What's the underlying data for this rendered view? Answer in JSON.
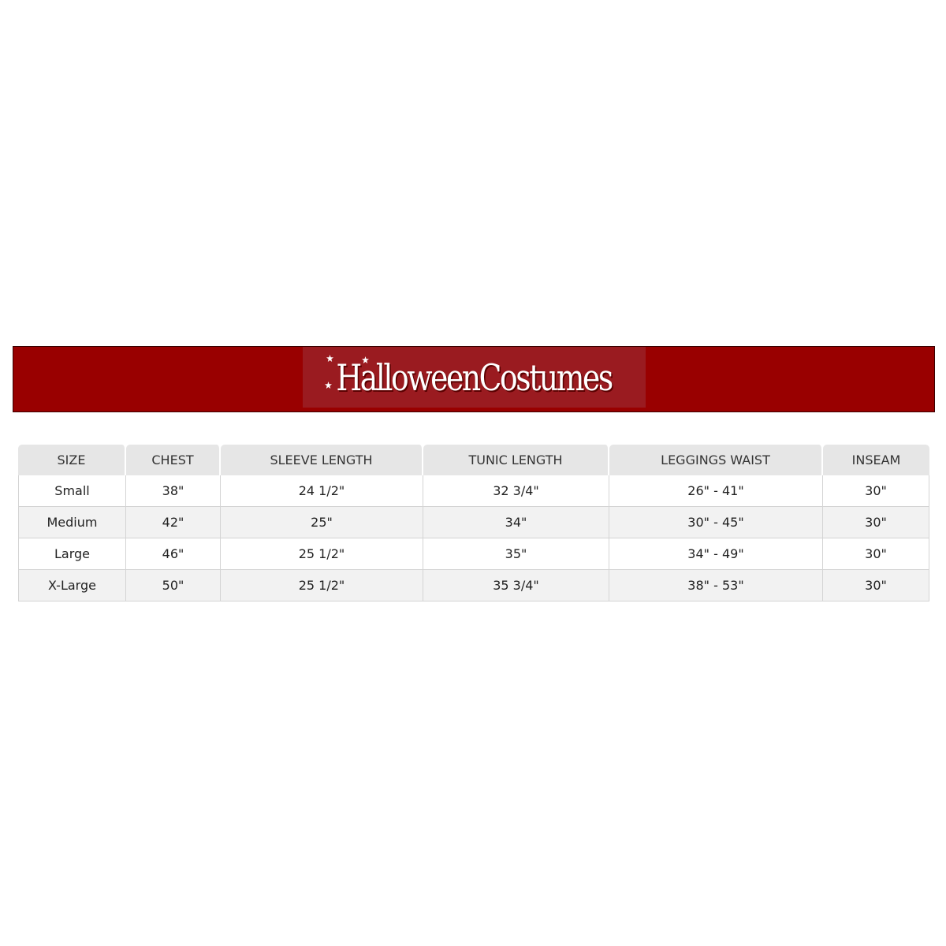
{
  "brand": {
    "logo_text": "HalloweenCostumes",
    "banner_color": "#990000"
  },
  "table": {
    "headers": [
      "SIZE",
      "CHEST",
      "SLEEVE LENGTH",
      "TUNIC LENGTH",
      "LEGGINGS WAIST",
      "INSEAM"
    ],
    "rows": [
      [
        "Small",
        "38\"",
        "24 1/2\"",
        "32 3/4\"",
        "26\" - 41\"",
        "30\""
      ],
      [
        "Medium",
        "42\"",
        "25\"",
        "34\"",
        "30\" - 45\"",
        "30\""
      ],
      [
        "Large",
        "46\"",
        "25 1/2\"",
        "35\"",
        "34\" - 49\"",
        "30\""
      ],
      [
        "X-Large",
        "50\"",
        "25 1/2\"",
        "35 3/4\"",
        "38\" - 53\"",
        "30\""
      ]
    ]
  }
}
